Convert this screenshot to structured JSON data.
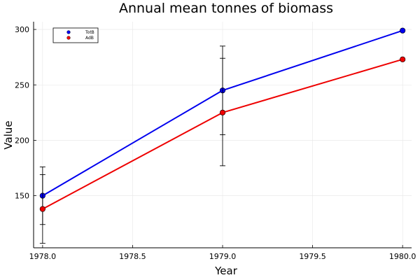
{
  "chart_data": {
    "type": "line",
    "title": "Annual mean tonnes of biomass",
    "xlabel": "Year",
    "ylabel": "Value",
    "x": [
      1978.0,
      1979.0,
      1980.0
    ],
    "x_ticks": [
      1978.0,
      1978.5,
      1979.0,
      1979.5,
      1980.0
    ],
    "x_tick_labels": [
      "1978.0",
      "1978.5",
      "1979.0",
      "1979.5",
      "1980.0"
    ],
    "y_ticks": [
      150,
      200,
      250,
      300
    ],
    "y_tick_labels": [
      "150",
      "200",
      "250",
      "300"
    ],
    "xlim": [
      1977.95,
      1980.05
    ],
    "ylim": [
      103,
      307
    ],
    "grid": true,
    "legend_position": "top-left",
    "series": [
      {
        "name": "TotB",
        "color": "#0000ee",
        "values": [
          150,
          245,
          299
        ],
        "error_low": [
          124,
          205,
          299
        ],
        "error_high": [
          176,
          285,
          299
        ]
      },
      {
        "name": "AdB",
        "color": "#ee0000",
        "values": [
          138,
          225,
          273
        ],
        "error_low": [
          107,
          177,
          273
        ],
        "error_high": [
          169,
          274,
          273
        ]
      }
    ]
  }
}
